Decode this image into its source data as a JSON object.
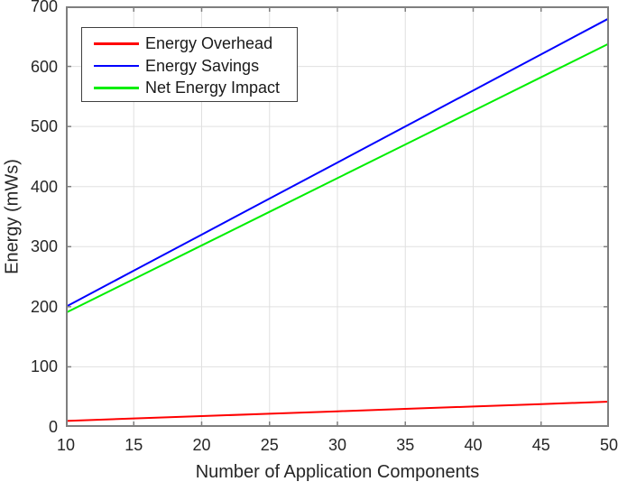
{
  "figure": {
    "xlabel": "Number of Application Components",
    "ylabel": "Energy (mWs)"
  },
  "chart_data": {
    "type": "line",
    "title": "",
    "xlabel": "Number of Application Components",
    "ylabel": "Energy (mWs)",
    "xlim": [
      10,
      50
    ],
    "ylim": [
      0,
      700
    ],
    "xticks": [
      10,
      15,
      20,
      25,
      30,
      35,
      40,
      45,
      50
    ],
    "yticks": [
      0,
      100,
      200,
      300,
      400,
      500,
      600,
      700
    ],
    "grid": true,
    "legend_position": "top-left",
    "x": [
      10,
      15,
      20,
      25,
      30,
      35,
      40,
      45,
      50
    ],
    "series": [
      {
        "name": "Energy Overhead",
        "color": "#ff0000",
        "values": [
          10,
          14,
          18,
          22,
          26,
          30,
          34,
          38,
          42
        ]
      },
      {
        "name": "Energy Savings",
        "color": "#0000ff",
        "values": [
          200,
          260,
          320,
          380,
          440,
          500,
          560,
          620,
          680
        ]
      },
      {
        "name": "Net Energy Impact",
        "color": "#00ee00",
        "values": [
          190,
          246,
          302,
          358,
          414,
          470,
          526,
          582,
          638
        ]
      }
    ],
    "line_width": 2,
    "colors": {
      "axis_box": "#7f7f7f",
      "grid": "#e0e0e0",
      "tick_label": "#262626",
      "legend_border": "#3f3f3f",
      "background": "#ffffff"
    }
  }
}
